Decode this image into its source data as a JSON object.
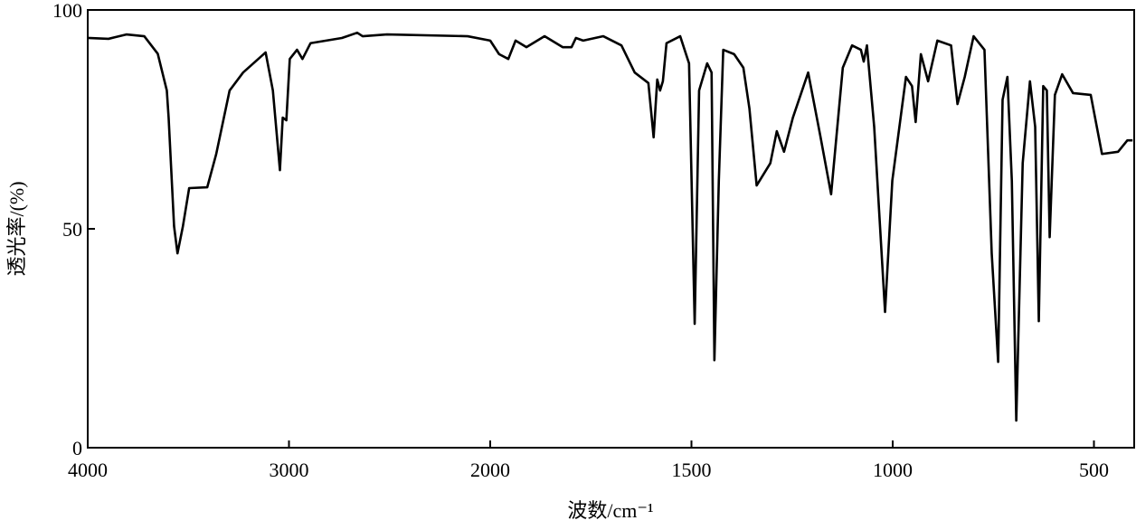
{
  "chart_data": {
    "type": "line",
    "x_label": "波数/cm⁻¹",
    "y_label": "透光率/(%)",
    "xlim": [
      4000,
      400
    ],
    "xticks": [
      4000,
      3000,
      2000,
      1500,
      1000,
      500
    ],
    "ylim": [
      0,
      100
    ],
    "yticks": [
      0,
      50,
      100
    ],
    "series": [
      {
        "color": "#000000",
        "x": [
          4000,
          3897,
          3808,
          3719,
          3652,
          3607,
          3598,
          3571,
          3554,
          3527,
          3496,
          3406,
          3362,
          3295,
          3228,
          3116,
          3080,
          3045,
          3031,
          3013,
          2996,
          2960,
          2933,
          2893,
          2737,
          2661,
          2634,
          2513,
          2112,
          2000,
          1978,
          1955,
          1937,
          1910,
          1865,
          1820,
          1798,
          1787,
          1769,
          1719,
          1674,
          1641,
          1607,
          1594,
          1585,
          1578,
          1571,
          1562,
          1528,
          1506,
          1492,
          1481,
          1461,
          1450,
          1443,
          1432,
          1421,
          1394,
          1371,
          1356,
          1338,
          1304,
          1288,
          1270,
          1248,
          1210,
          1180,
          1153,
          1124,
          1101,
          1079,
          1072,
          1064,
          1046,
          1019,
          1001,
          967,
          952,
          943,
          930,
          912,
          889,
          855,
          839,
          821,
          799,
          772,
          754,
          738,
          727,
          715,
          704,
          693,
          677,
          659,
          646,
          637,
          626,
          617,
          610,
          597,
          579,
          552,
          508,
          480,
          440,
          417,
          404
        ],
        "values": [
          93.6,
          93.4,
          94.4,
          94,
          90,
          81.6,
          75.4,
          50.6,
          44.4,
          50.6,
          59.3,
          59.5,
          67,
          81.6,
          85.7,
          90.3,
          81.6,
          63.4,
          75.4,
          74.8,
          88.8,
          90.9,
          88.8,
          92.4,
          93.6,
          94.8,
          94,
          94.4,
          94,
          93,
          89.9,
          88.8,
          93,
          91.5,
          94,
          91.5,
          91.5,
          93.6,
          93,
          94,
          91.9,
          85.7,
          83.3,
          70.9,
          84.1,
          81.6,
          83.7,
          92.4,
          94,
          87.8,
          28.3,
          81.6,
          87.8,
          85.7,
          20,
          61,
          90.9,
          89.9,
          86.8,
          77.5,
          59.9,
          65,
          72.3,
          67.6,
          75.4,
          85.7,
          71.3,
          57.9,
          86.8,
          91.9,
          90.9,
          88.2,
          91.9,
          73.3,
          31,
          61,
          84.7,
          82.6,
          74.4,
          89.9,
          83.7,
          93,
          91.9,
          78.5,
          84.7,
          94,
          90.9,
          44.4,
          19.6,
          79.5,
          84.7,
          61,
          6.2,
          65,
          83.7,
          73.3,
          28.9,
          82.6,
          81.6,
          48.1,
          80.6,
          85.3,
          81,
          80.6,
          67.1,
          67.6,
          70.2,
          70.2
        ]
      }
    ]
  }
}
